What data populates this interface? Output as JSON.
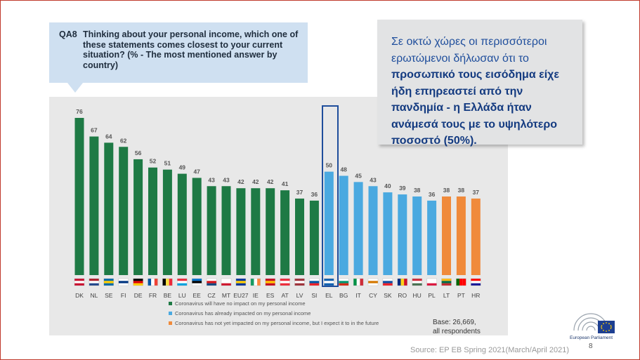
{
  "question": {
    "code": "QA8",
    "text": "Thinking about your personal income, which one of these statements comes closest to your current situation? (% - The most mentioned answer by country)"
  },
  "callout": {
    "line1": "Σε οκτώ χώρες οι περισσότεροι ερωτώμενοι δήλωσαν ότι το",
    "bold": "προσωπικό τους εισόδημα είχε ήδη επηρεαστεί από την πανδημία - η Ελλάδα ήταν ανάμεσά τους με το υψηλότερο ποσοστό (50%)."
  },
  "colors": {
    "green": "#1e7a45",
    "blue": "#4aa9e0",
    "orange": "#f08a3b",
    "highlight": "#1f4e9c"
  },
  "chart_data": {
    "type": "bar",
    "categories": [
      "DK",
      "NL",
      "SE",
      "FI",
      "DE",
      "FR",
      "BE",
      "LU",
      "EE",
      "CZ",
      "MT",
      "EU27",
      "IE",
      "ES",
      "AT",
      "LV",
      "SI",
      "EL",
      "BG",
      "IT",
      "CY",
      "SK",
      "RO",
      "HU",
      "PL",
      "LT",
      "PT",
      "HR"
    ],
    "values": [
      76,
      67,
      64,
      62,
      56,
      52,
      51,
      49,
      47,
      43,
      43,
      42,
      42,
      42,
      41,
      37,
      36,
      50,
      48,
      45,
      43,
      40,
      39,
      38,
      36,
      38,
      38,
      37
    ],
    "groups": [
      "no_impact",
      "no_impact",
      "no_impact",
      "no_impact",
      "no_impact",
      "no_impact",
      "no_impact",
      "no_impact",
      "no_impact",
      "no_impact",
      "no_impact",
      "no_impact",
      "no_impact",
      "no_impact",
      "no_impact",
      "no_impact",
      "no_impact",
      "already",
      "already",
      "already",
      "already",
      "already",
      "already",
      "already",
      "already",
      "not_yet",
      "not_yet",
      "not_yet"
    ],
    "highlighted": "EL",
    "ylim": [
      0,
      80
    ],
    "legend": [
      {
        "key": "no_impact",
        "label": "Coronavirus will have no impact on my personal income",
        "color": "#1e7a45"
      },
      {
        "key": "already",
        "label": "Coronavirus has already impacted on my personal income",
        "color": "#4aa9e0"
      },
      {
        "key": "not_yet",
        "label": "Coronavirus has not yet impacted on my personal income, but I expect it to in the future",
        "color": "#f08a3b"
      }
    ]
  },
  "base": {
    "line1": "Base: 26,669,",
    "line2": "all respondents"
  },
  "source": "Source: EP EB Spring 2021(March/April 2021)",
  "page_number": "8",
  "logo": {
    "label": "European Parliament",
    "icon": "european-parliament-logo"
  }
}
